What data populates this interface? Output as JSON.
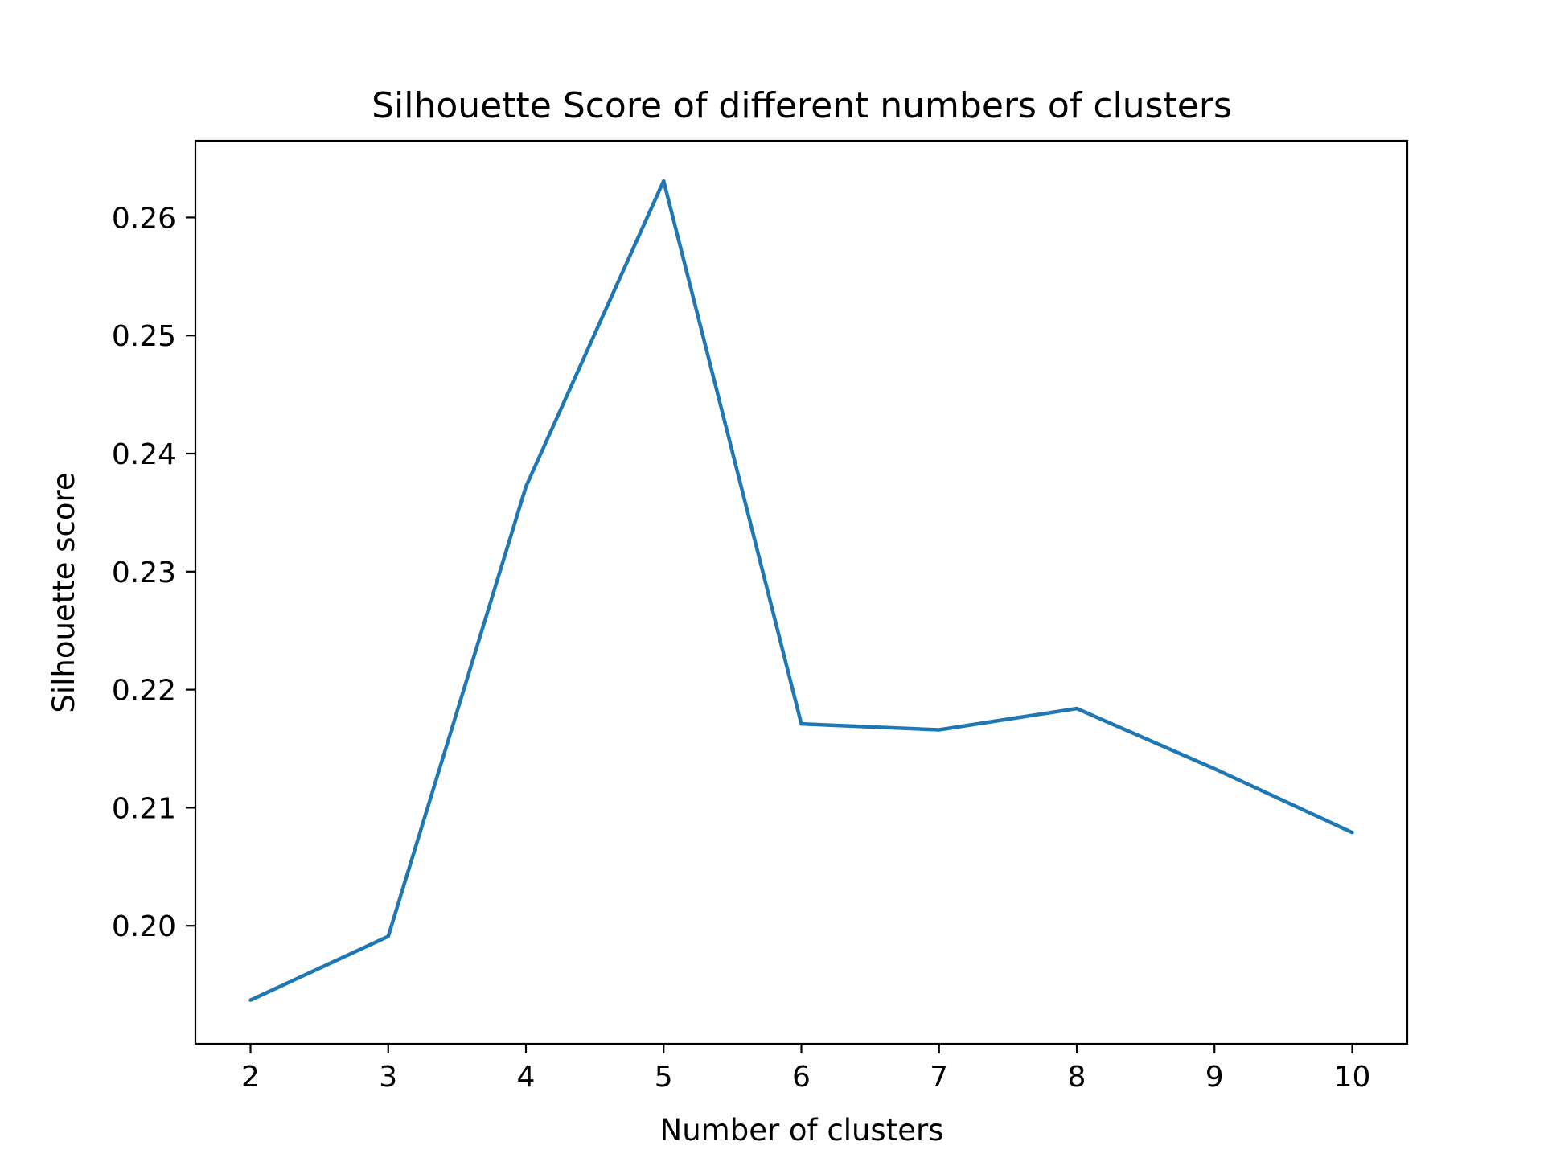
{
  "chart_data": {
    "type": "line",
    "title": "Silhouette Score of different numbers of clusters",
    "xlabel": "Number of clusters",
    "ylabel": "Silhouette score",
    "x": [
      2,
      3,
      4,
      5,
      6,
      7,
      8,
      9,
      10
    ],
    "series": [
      {
        "values": [
          0.1937,
          0.1991,
          0.2372,
          0.2631,
          0.2171,
          0.2166,
          0.2184,
          0.2133,
          0.2079
        ],
        "color": "#1f77b4"
      }
    ],
    "xticks": [
      "2",
      "3",
      "4",
      "5",
      "6",
      "7",
      "8",
      "9",
      "10"
    ],
    "yticks": [
      "0.20",
      "0.21",
      "0.22",
      "0.23",
      "0.24",
      "0.25",
      "0.26"
    ],
    "xlim": [
      1.6,
      10.4
    ],
    "ylim": [
      0.19,
      0.2665
    ],
    "grid": false,
    "legend": "none"
  }
}
